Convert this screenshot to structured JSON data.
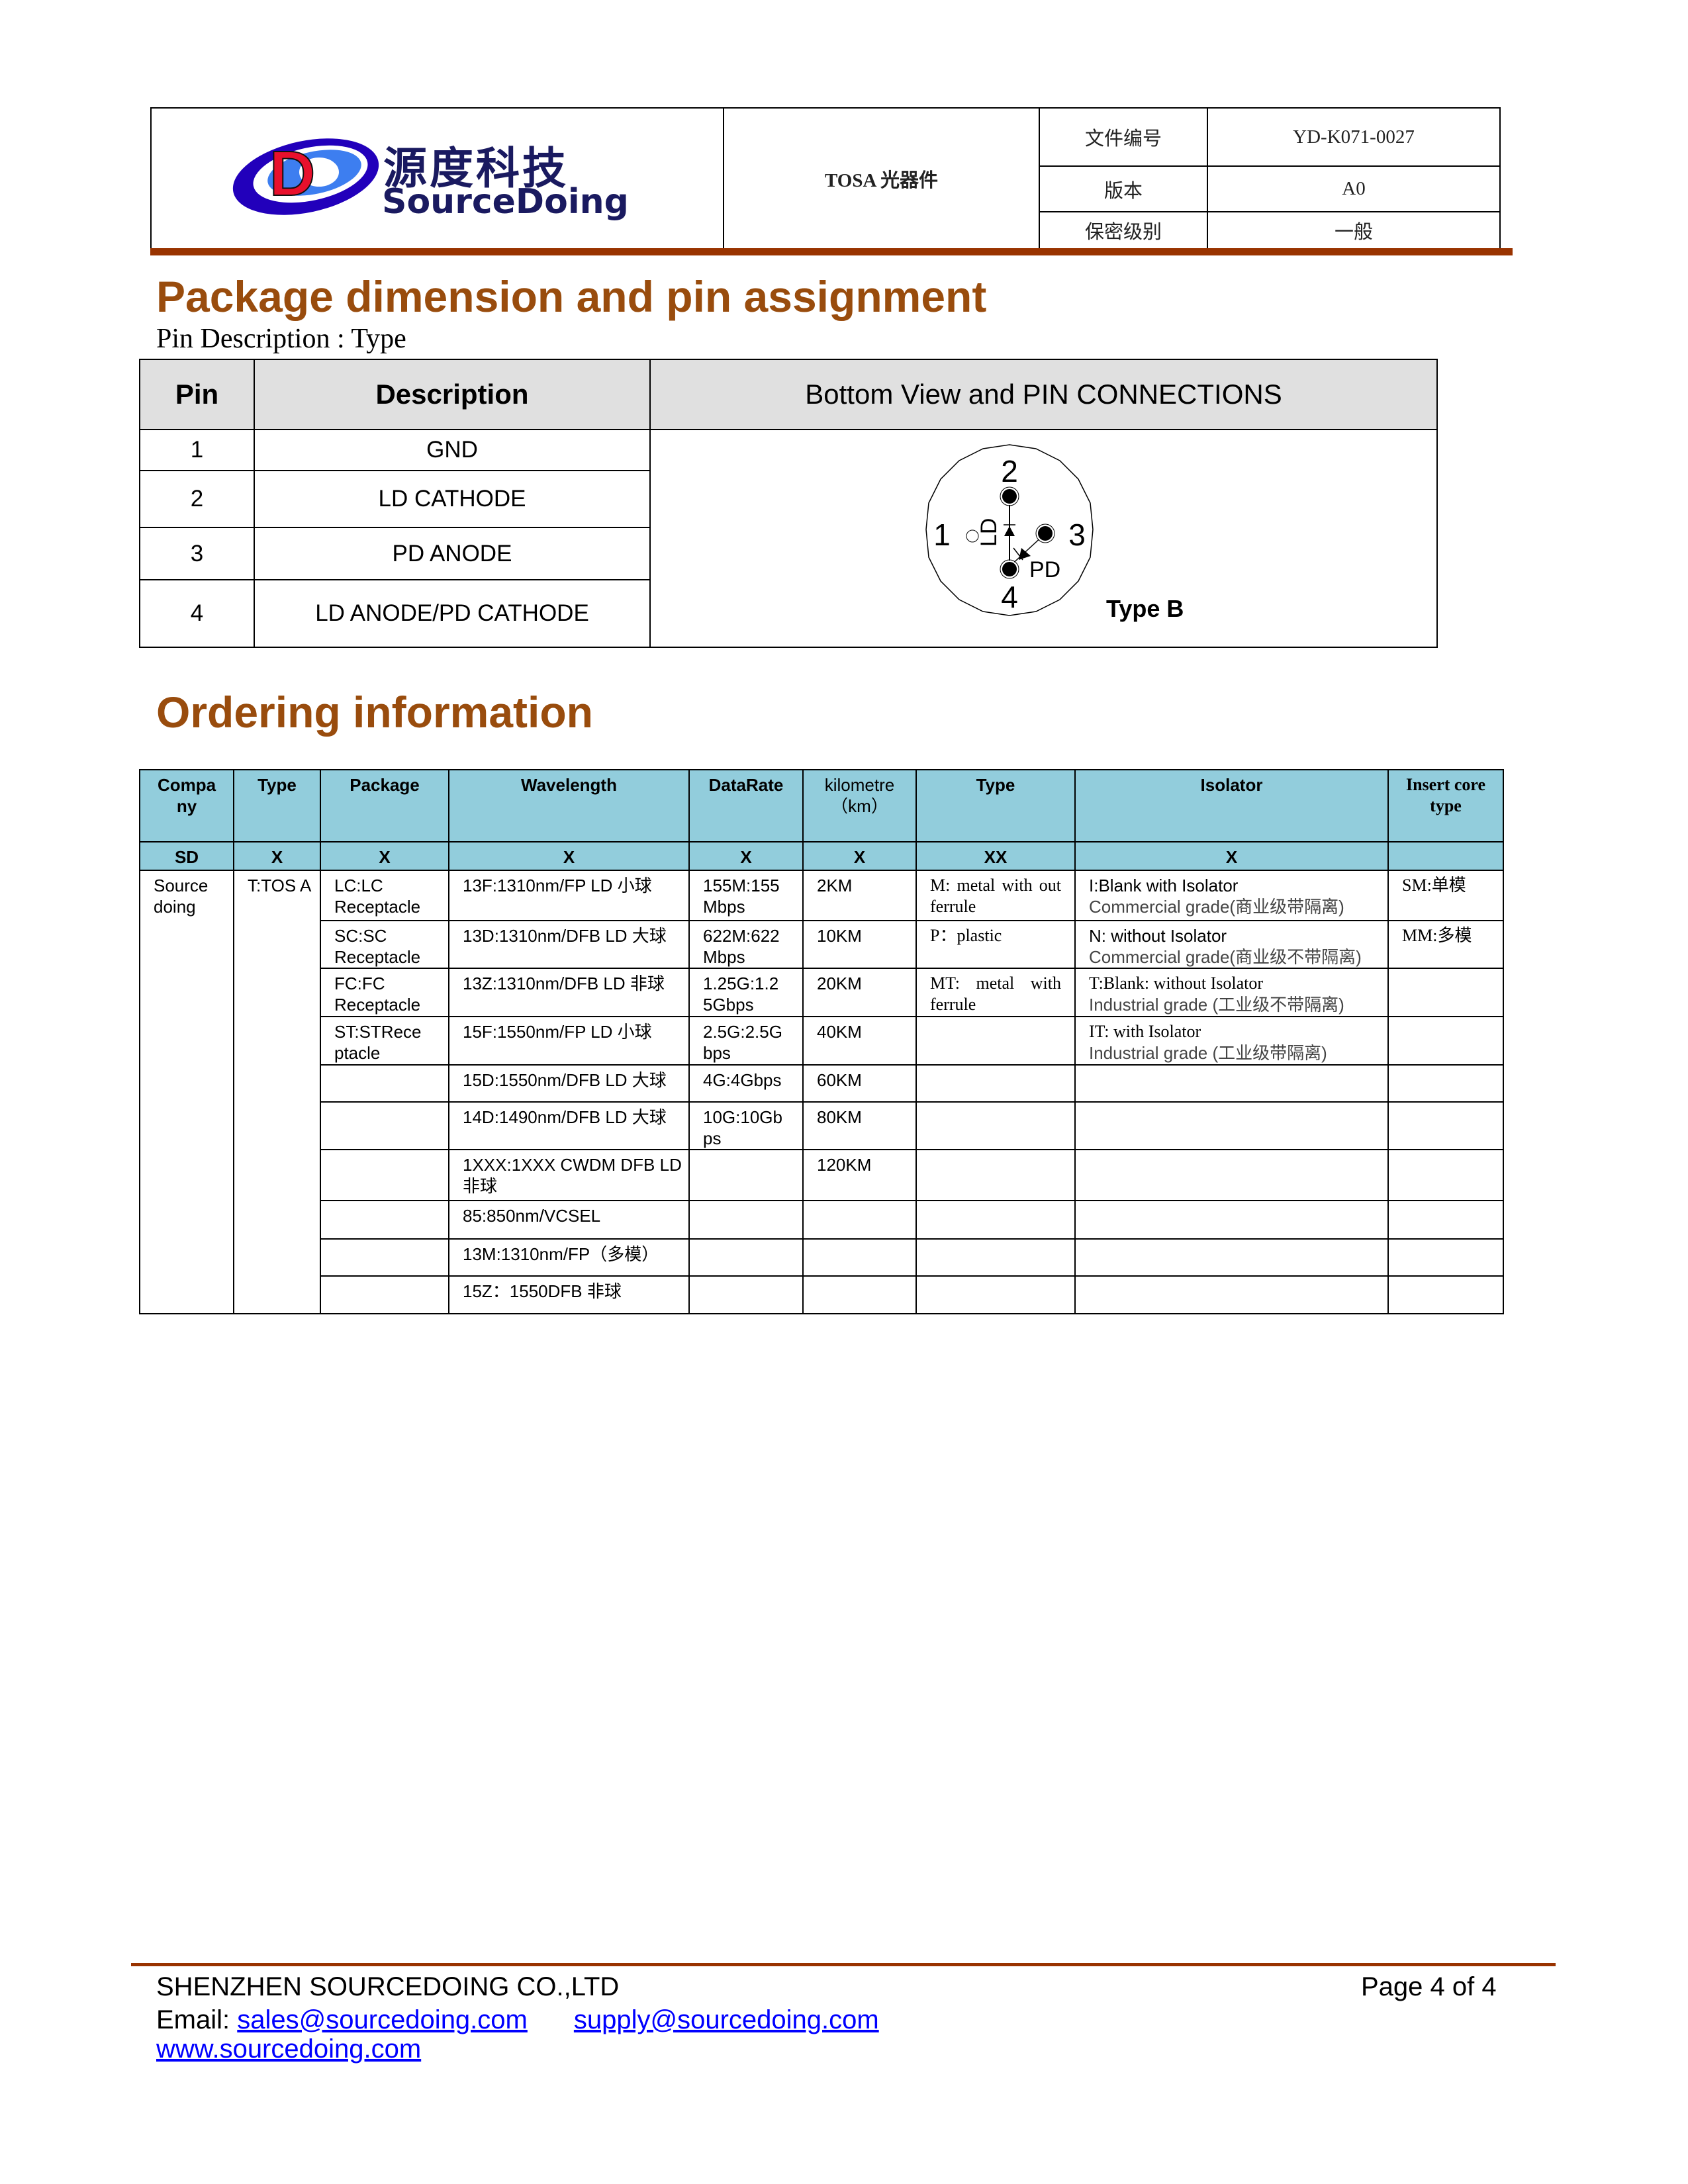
{
  "header": {
    "logo_cn": "源度科技",
    "logo_en": "SourceDoing",
    "doc_title": "TOSA 光器件",
    "fields": [
      {
        "label": "文件编号",
        "value": "YD-K071-0027"
      },
      {
        "label": "版本",
        "value": "A0"
      },
      {
        "label": "保密级别",
        "value": "一般"
      }
    ]
  },
  "section1": {
    "title": "Package dimension and pin assignment",
    "subtitle": "Pin Description : Type",
    "table": {
      "headers": [
        "Pin",
        "Description",
        "Bottom View and PIN CONNECTIONS"
      ],
      "rows": [
        {
          "pin": "1",
          "desc": "GND"
        },
        {
          "pin": "2",
          "desc": "LD CATHODE"
        },
        {
          "pin": "3",
          "desc": "PD ANODE"
        },
        {
          "pin": "4",
          "desc": "LD ANODE/PD CATHODE"
        }
      ]
    },
    "diagram": {
      "pin_labels": [
        "1",
        "2",
        "3",
        "4"
      ],
      "ld_label": "LD",
      "pd_label": "PD",
      "type_label": "Type B"
    }
  },
  "section2": {
    "title": "Ordering information",
    "headers": [
      "Compa ny",
      "Type",
      "Package",
      "Wavelength",
      "DataRate",
      "kilometre （km）",
      "Type",
      "Isolator",
      "Insert core type"
    ],
    "codes": [
      "SD",
      "X",
      "X",
      "X",
      "X",
      "X",
      "XX",
      "X",
      ""
    ],
    "company": "Source doing",
    "type": "T:TOS A",
    "rows": [
      {
        "package": "LC:LC Receptacle",
        "wavelength": "13F:1310nm/FP LD 小球",
        "datarate": "155M:155 Mbps",
        "km": "2KM",
        "type2": "M:  metal  with out ferrule",
        "iso1": "I:Blank with Isolator",
        "iso2": "Commercial grade(商业级带隔离)",
        "core": "SM:单模"
      },
      {
        "package": "SC:SC Receptacle",
        "wavelength": "13D:1310nm/DFB LD 大球",
        "datarate": "622M:622 Mbps",
        "km": "10KM",
        "type2": "P：plastic",
        "iso1": "N: without Isolator",
        "iso2": "Commercial grade(商业级不带隔离)",
        "core": "MM:多模"
      },
      {
        "package": "FC:FC Receptacle",
        "wavelength": "13Z:1310nm/DFB LD 非球",
        "datarate": "1.25G:1.2 5Gbps",
        "km": "20KM",
        "type2": "MT:  metal  with ferrule",
        "iso1": "T:Blank: without Isolator",
        "iso2": "Industrial grade (工业级不带隔离)",
        "core": ""
      },
      {
        "package": "ST:STRece ptacle",
        "wavelength": "15F:1550nm/FP LD 小球",
        "datarate": "2.5G:2.5G bps",
        "km": "40KM",
        "type2": "",
        "iso1": "IT: with Isolator",
        "iso2": "Industrial grade (工业级带隔离)",
        "core": ""
      },
      {
        "package": "",
        "wavelength": "15D:1550nm/DFB LD 大球",
        "datarate": "4G:4Gbps",
        "km": "60KM",
        "type2": "",
        "iso1": "",
        "iso2": "",
        "core": ""
      },
      {
        "package": "",
        "wavelength": "14D:1490nm/DFB LD 大球",
        "datarate": "10G:10Gb ps",
        "km": "80KM",
        "type2": "",
        "iso1": "",
        "iso2": "",
        "core": ""
      },
      {
        "package": "",
        "wavelength": "1XXX:1XXX  CWDM  DFB LD 非球",
        "datarate": "",
        "km": "120KM",
        "type2": "",
        "iso1": "",
        "iso2": "",
        "core": ""
      },
      {
        "package": "",
        "wavelength": "85:850nm/VCSEL",
        "datarate": "",
        "km": "",
        "type2": "",
        "iso1": "",
        "iso2": "",
        "core": ""
      },
      {
        "package": "",
        "wavelength": "13M:1310nm/FP（多模）",
        "datarate": "",
        "km": "",
        "type2": "",
        "iso1": "",
        "iso2": "",
        "core": ""
      },
      {
        "package": "",
        "wavelength": "15Z：1550DFB 非球",
        "datarate": "",
        "km": "",
        "type2": "",
        "iso1": "",
        "iso2": "",
        "core": ""
      }
    ]
  },
  "footer": {
    "company": "SHENZHEN SOURCEDOING CO.,LTD",
    "page": "Page 4 of 4",
    "email_label": "Email:",
    "email1": "sales@sourcedoing.com",
    "email2": "supply@sourcedoing.com",
    "website": "www.sourcedoing.com"
  },
  "colors": {
    "accent": "#994C0D",
    "bar": "#993300",
    "table_header": "#92CDDC"
  }
}
